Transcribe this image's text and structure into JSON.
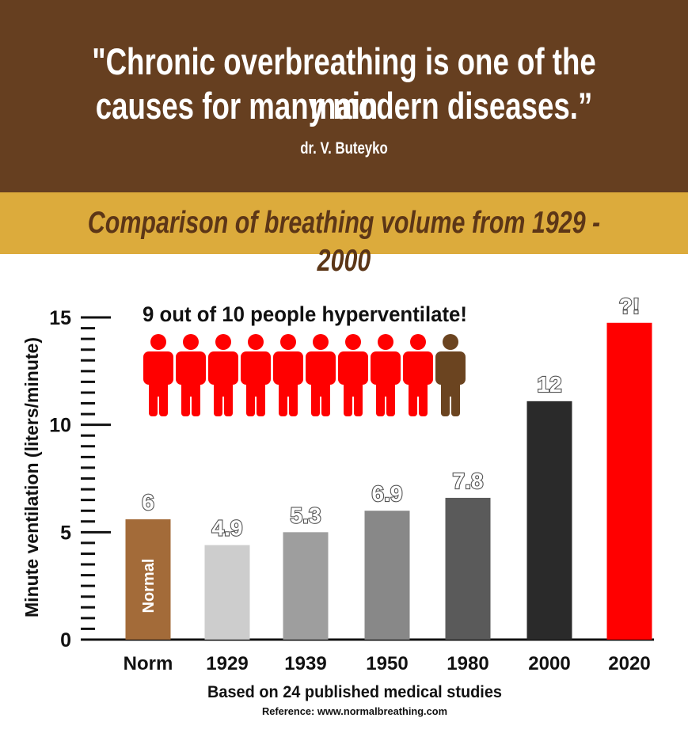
{
  "header": {
    "quote_line1": "\"Chronic overbreathing is one of the main",
    "quote_line2": "causes for many modern diseases.”",
    "author": "dr. V. Buteyko",
    "background_color": "#663f20"
  },
  "band": {
    "subtitle": "Comparison of breathing volume from 1929 - 2000",
    "background_color": "#dcab3c",
    "text_color": "#5c3617"
  },
  "chart_data": {
    "type": "bar",
    "title": "Comparison of breathing volume from 1929 - 2000",
    "xlabel": "",
    "ylabel": "Minute ventilation (liters/minute)",
    "ylim": [
      0,
      15
    ],
    "yticks": [
      0,
      5,
      10,
      15
    ],
    "minor_tick_step": 0.5,
    "categories": [
      "Norm",
      "1929",
      "1939",
      "1950",
      "1980",
      "2000",
      "2020"
    ],
    "values": [
      6,
      4.9,
      5.3,
      6.9,
      7.8,
      12,
      null
    ],
    "data_labels": [
      "6",
      "4.9",
      "5.3",
      "6.9",
      "7.8",
      "12",
      "?!"
    ],
    "drawn_heights": [
      5.6,
      4.4,
      5.0,
      6.0,
      6.6,
      11.1,
      14.75
    ],
    "bar_colors": [
      "#a36b39",
      "#cdcdcd",
      "#9e9e9e",
      "#888888",
      "#5a5a5a",
      "#2a2a2a",
      "#ff0000"
    ],
    "bar_inner_labels": [
      "Normal",
      "",
      "",
      "",
      "",
      "",
      ""
    ],
    "grid": false,
    "annotation": "9 out of 10 people hyperventilate!",
    "people_icons": {
      "total": 10,
      "hyperventilating": 9,
      "hyper_color": "#ff0000",
      "normal_color": "#6b4420"
    },
    "footnote": "Based on 24 published medical studies",
    "reference": "Reference: www.normalbreathing.com"
  }
}
